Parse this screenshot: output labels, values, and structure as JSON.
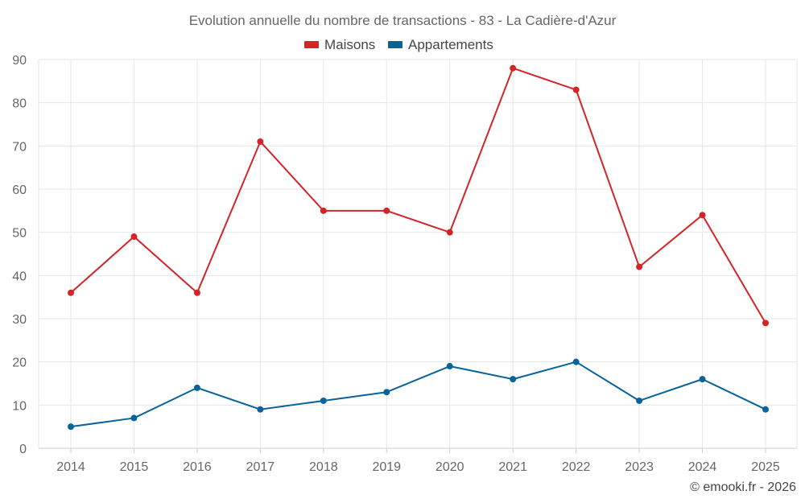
{
  "chart_data": {
    "type": "line",
    "title": "Evolution annuelle du nombre de transactions - 83 - La Cadière-d'Azur",
    "categories": [
      "2014",
      "2015",
      "2016",
      "2017",
      "2018",
      "2019",
      "2020",
      "2021",
      "2022",
      "2023",
      "2024",
      "2025"
    ],
    "series": [
      {
        "name": "Maisons",
        "color": "#d32428",
        "values": [
          36,
          49,
          36,
          71,
          55,
          55,
          50,
          88,
          83,
          42,
          54,
          29
        ]
      },
      {
        "name": "Appartements",
        "color": "#07639a",
        "values": [
          5,
          7,
          14,
          9,
          11,
          13,
          19,
          16,
          20,
          11,
          16,
          9
        ]
      }
    ],
    "ylim": [
      0,
      90
    ],
    "yticks": [
      0,
      10,
      20,
      30,
      40,
      50,
      60,
      70,
      80,
      90
    ],
    "xlabel": "",
    "ylabel": "",
    "grid": true,
    "legend": "top-center",
    "credit": "© emooki.fr - 2026"
  }
}
